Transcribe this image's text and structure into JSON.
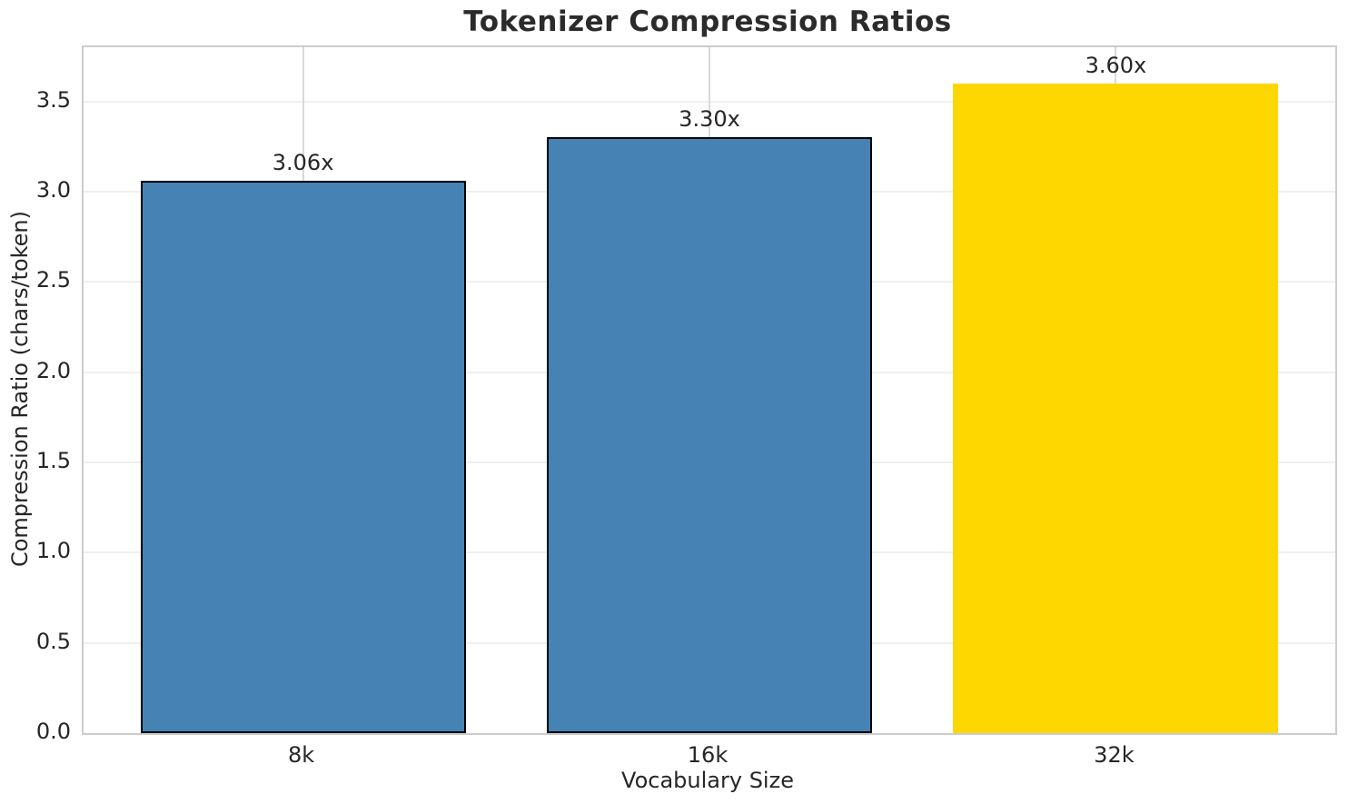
{
  "chart_data": {
    "type": "bar",
    "title": "Tokenizer Compression Ratios",
    "xlabel": "Vocabulary Size",
    "ylabel": "Compression Ratio (chars/token)",
    "categories": [
      "8k",
      "16k",
      "32k"
    ],
    "values": [
      3.06,
      3.3,
      3.6
    ],
    "bar_labels": [
      "3.06x",
      "3.30x",
      "3.60x"
    ],
    "bar_colors": [
      "#4682B4",
      "#4682B4",
      "#FFD700"
    ],
    "bar_edge_colors": [
      "#000000",
      "#000000",
      "none"
    ],
    "ylim": [
      0,
      3.8
    ],
    "xlim": [
      -0.54,
      2.54
    ],
    "bar_width": 0.8,
    "yticks": [
      0.0,
      0.5,
      1.0,
      1.5,
      2.0,
      2.5,
      3.0,
      3.5
    ],
    "ytick_labels": [
      "0.0",
      "0.5",
      "1.0",
      "1.5",
      "2.0",
      "2.5",
      "3.0",
      "3.5"
    ],
    "grid": "both",
    "legend": "none",
    "background_color": "#ffffff",
    "spine_color": "#cccccc",
    "grid_color_horizontal": "#f0f0f0",
    "grid_color_vertical": "#d9d9d9",
    "text_color": "#262626",
    "title_color": "#2b2b2b"
  }
}
